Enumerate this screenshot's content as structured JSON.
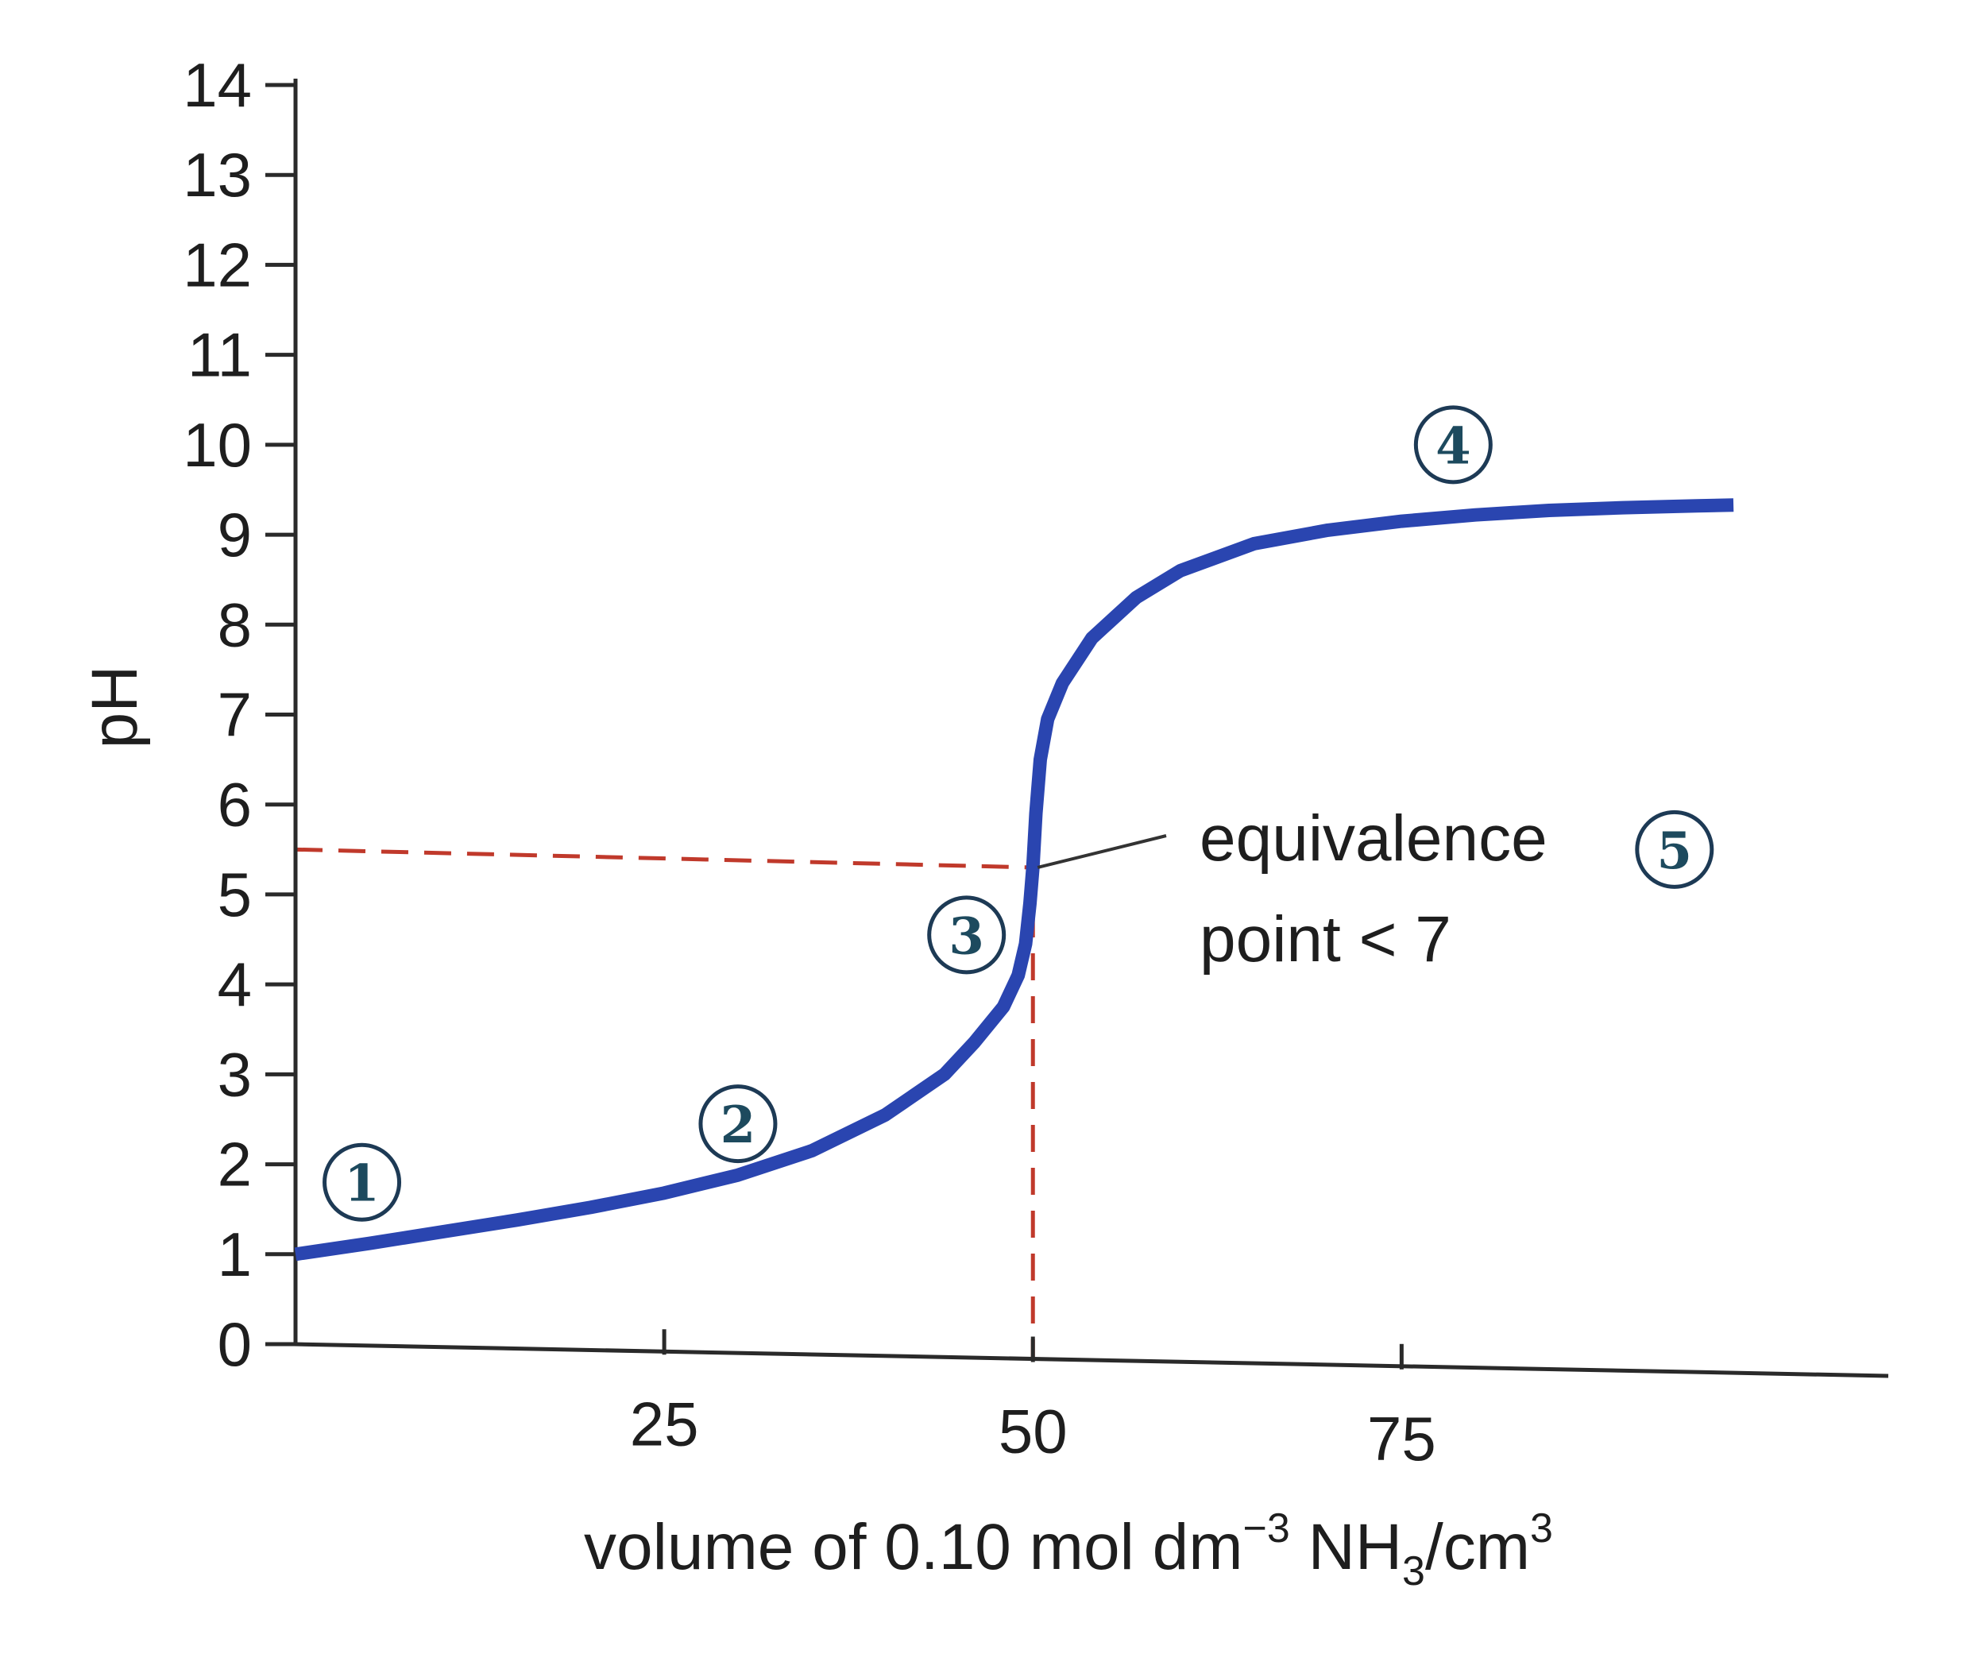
{
  "chart_data": {
    "type": "line",
    "title": "",
    "xlabel_parts": {
      "main": "volume of 0.10 mol dm",
      "exp": "−3",
      "species": " NH",
      "sub": "3",
      "unit": "/cm",
      "unit_exp": "3"
    },
    "ylabel": "pH",
    "xlim": [
      0,
      108
    ],
    "ylim": [
      0,
      14
    ],
    "x_ticks": [
      25,
      50,
      75
    ],
    "y_ticks": [
      0,
      1,
      2,
      3,
      4,
      5,
      6,
      7,
      8,
      9,
      10,
      11,
      12,
      13,
      14
    ],
    "series": [
      {
        "name": "titration curve",
        "color": "#2a45b0",
        "x": [
          0,
          5,
          10,
          15,
          20,
          25,
          30,
          35,
          40,
          44,
          46,
          48,
          49,
          49.5,
          49.8,
          50,
          50.2,
          50.5,
          51,
          52,
          54,
          57,
          60,
          65,
          70,
          75,
          80,
          85,
          90,
          95,
          97.5
        ],
        "y": [
          1.0,
          1.12,
          1.25,
          1.38,
          1.52,
          1.68,
          1.88,
          2.15,
          2.55,
          3.0,
          3.35,
          3.75,
          4.1,
          4.45,
          4.9,
          5.3,
          5.9,
          6.5,
          6.95,
          7.35,
          7.85,
          8.3,
          8.6,
          8.9,
          9.05,
          9.15,
          9.22,
          9.27,
          9.3,
          9.32,
          9.33
        ]
      }
    ],
    "guide_lines": {
      "color": "#c0392b",
      "equivalence_volume": 50,
      "equivalence_ph": 5.3
    },
    "annotations": {
      "equivalence_line1": "equivalence",
      "equivalence_line2": "point < 7",
      "markers": [
        {
          "label": "1",
          "x": 4.5,
          "y": 1.8
        },
        {
          "label": "2",
          "x": 30,
          "y": 2.45
        },
        {
          "label": "3",
          "x": 45.5,
          "y": 4.55
        },
        {
          "label": "4",
          "x": 78.5,
          "y": 10.0
        },
        {
          "label": "5",
          "x": 93.5,
          "y": 5.5
        }
      ]
    }
  }
}
